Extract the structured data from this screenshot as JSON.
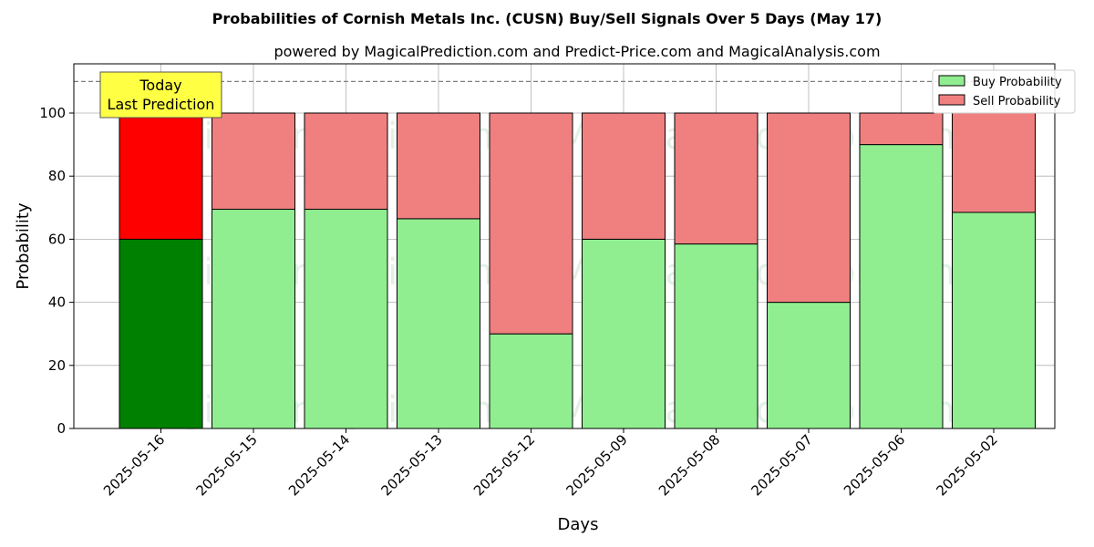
{
  "chart_data": {
    "type": "bar",
    "title": "Probabilities of Cornish Metals Inc. (CUSN) Buy/Sell Signals Over 5 Days (May 17)",
    "subtitle": "powered by MagicalPrediction.com and Predict-Price.com and MagicalAnalysis.com",
    "xlabel": "Days",
    "ylabel": "Probability",
    "ylim": [
      0,
      115
    ],
    "yticks": [
      0,
      20,
      40,
      60,
      80,
      100
    ],
    "categories": [
      "2025-05-16",
      "2025-05-15",
      "2025-05-14",
      "2025-05-13",
      "2025-05-12",
      "2025-05-09",
      "2025-05-08",
      "2025-05-07",
      "2025-05-06",
      "2025-05-02"
    ],
    "stacked": true,
    "series": [
      {
        "name": "Buy Probability",
        "values": [
          60,
          69.5,
          69.5,
          66.5,
          30,
          60,
          58.5,
          40,
          90,
          68.5
        ],
        "color": "#90ee90",
        "highlight_color": "#008000"
      },
      {
        "name": "Sell Probability",
        "values": [
          40,
          30.5,
          30.5,
          33.5,
          70,
          40,
          41.5,
          60,
          10,
          31.5
        ],
        "color": "#f08080",
        "highlight_color": "#ff0000"
      }
    ],
    "highlight_index": 0,
    "reference_line": 110,
    "legend_position": "top-right",
    "grid": true,
    "annotation": {
      "line1": "Today",
      "line2": "Last Prediction",
      "color": "#ffff44"
    },
    "watermarks": [
      "MagicalAnalysis.com",
      "MagicalPrediction.com"
    ]
  }
}
